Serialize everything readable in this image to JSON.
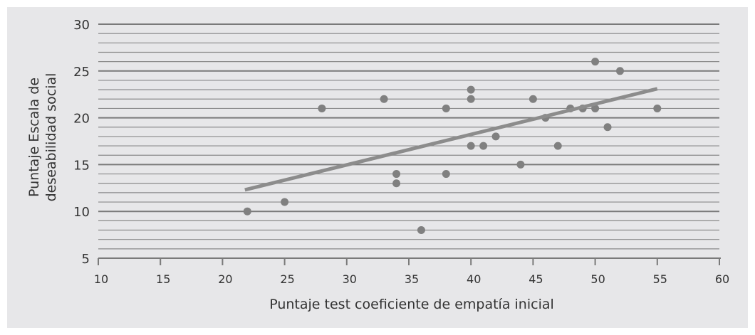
{
  "chart_data": {
    "type": "scatter",
    "title": "",
    "xlabel": "Puntaje test coeficiente de empatía inicial",
    "ylabel_lines": [
      "Puntaje Escala de",
      "deseabilidad social"
    ],
    "xlim": [
      10,
      60
    ],
    "ylim": [
      5,
      30
    ],
    "xticks": [
      10,
      15,
      20,
      25,
      30,
      35,
      40,
      45,
      50,
      55,
      60
    ],
    "yticks": [
      5,
      10,
      15,
      20,
      25,
      30
    ],
    "grid": "horizontal, minor every 1, major every 5",
    "point_color": "#808080",
    "points": [
      [
        22,
        10
      ],
      [
        25,
        11
      ],
      [
        28,
        21
      ],
      [
        33,
        22
      ],
      [
        34,
        14
      ],
      [
        34,
        13
      ],
      [
        36,
        8
      ],
      [
        38,
        21
      ],
      [
        38,
        14
      ],
      [
        40,
        23
      ],
      [
        40,
        22
      ],
      [
        40,
        17
      ],
      [
        41,
        17
      ],
      [
        42,
        18
      ],
      [
        44,
        15
      ],
      [
        45,
        22
      ],
      [
        46,
        20
      ],
      [
        47,
        17
      ],
      [
        48,
        21
      ],
      [
        49,
        21
      ],
      [
        50,
        26
      ],
      [
        50,
        21
      ],
      [
        51,
        19
      ],
      [
        52,
        25
      ],
      [
        55,
        21
      ]
    ],
    "trendline": {
      "x": [
        21.8,
        55
      ],
      "y": [
        12.3,
        23.1
      ],
      "color": "#8c8c8c"
    }
  }
}
